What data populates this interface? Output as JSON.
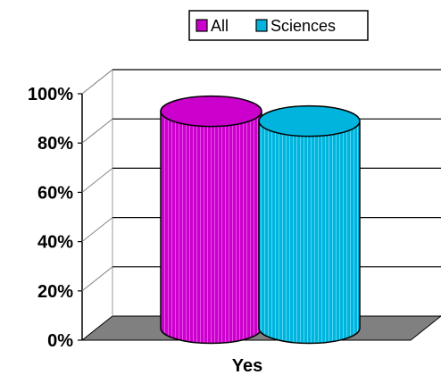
{
  "chart_data": {
    "type": "bar",
    "categories": [
      "Yes"
    ],
    "series": [
      {
        "name": "All",
        "values": [
          88
        ],
        "color": "#cc00cc"
      },
      {
        "name": "Sciences",
        "values": [
          84
        ],
        "color": "#00b4dd"
      }
    ],
    "ylim": [
      0,
      100
    ],
    "yticks": [
      "0%",
      "20%",
      "40%",
      "60%",
      "80%",
      "100%"
    ],
    "xlabel": "",
    "ylabel": "",
    "title": "",
    "grid": true,
    "legend": "top",
    "style": "3d-cylinder"
  }
}
